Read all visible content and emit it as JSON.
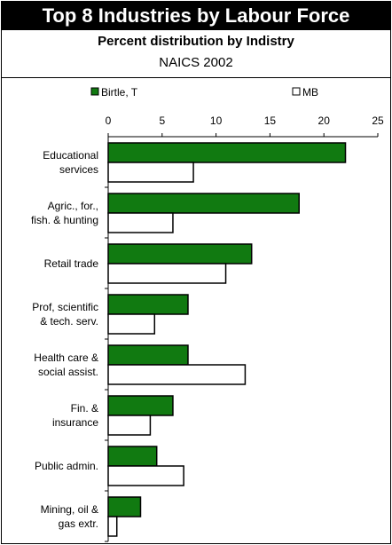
{
  "header": {
    "title": "Top 8 Industries by Labour Force",
    "subtitle": "Percent distribution by Indistry",
    "subtitle2": "NAICS 2002"
  },
  "chart_data": {
    "type": "bar",
    "orientation": "horizontal",
    "categories": [
      [
        "Educational",
        "services"
      ],
      [
        "Agric., for.,",
        "fish. & hunting"
      ],
      [
        "Retail trade"
      ],
      [
        "Prof, scientific",
        "& tech. serv."
      ],
      [
        "Health care &",
        "social assist."
      ],
      [
        "Fin. &",
        "insurance"
      ],
      [
        "Public admin."
      ],
      [
        "Mining, oil &",
        "gas extr."
      ]
    ],
    "series": [
      {
        "name": "Birtle, T",
        "color": "#117a11",
        "values": [
          22.0,
          17.7,
          13.3,
          7.4,
          7.4,
          6.0,
          4.5,
          3.0
        ]
      },
      {
        "name": "MB",
        "color": "#ffffff",
        "values": [
          7.9,
          6.0,
          10.9,
          4.3,
          12.7,
          3.9,
          7.0,
          0.8
        ]
      }
    ],
    "xlim": [
      0,
      25
    ],
    "ticks": [
      0,
      5,
      10,
      15,
      20,
      25
    ],
    "legend_position": "top",
    "grid": false
  }
}
